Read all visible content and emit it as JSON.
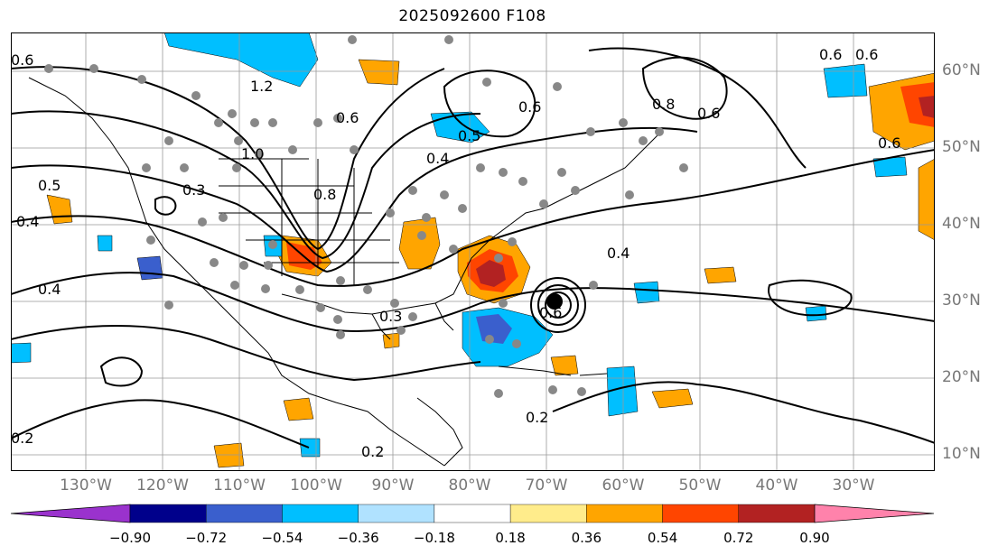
{
  "title": "2025092600 F108",
  "lat_labels": [
    "60°N",
    "50°N",
    "40°N",
    "30°N",
    "20°N",
    "10°N"
  ],
  "lon_labels": [
    "130°W",
    "120°W",
    "110°W",
    "100°W",
    "90°W",
    "80°W",
    "70°W",
    "60°W",
    "50°W",
    "40°W",
    "30°W"
  ],
  "contour_labels": [
    "0.6",
    "0.5",
    "0.4",
    "0.4",
    "1.2",
    "1.0",
    "0.8",
    "0.6",
    "0.6",
    "0.6",
    "0.4",
    "0.3",
    "0.4",
    "0.2",
    "0.2",
    "0.2",
    "0.6",
    "0.6",
    "0.6",
    "0.8",
    "0.6",
    "0.5",
    "0.3"
  ],
  "colorbar": {
    "ticks": [
      "−0.90",
      "−0.72",
      "−0.54",
      "−0.36",
      "−0.18",
      "0.18",
      "0.36",
      "0.54",
      "0.72",
      "0.90"
    ],
    "colors": [
      "#9a32cd",
      "#00008b",
      "#3a5fcd",
      "#00bfff",
      "#b0e2ff",
      "#ffffff",
      "#ffec8b",
      "#ffa500",
      "#ff4500",
      "#b22222",
      "#ff82ab"
    ]
  },
  "colors": {
    "neg_strong": "#3a5fcd",
    "neg_mid": "#00bfff",
    "pos_mid": "#ffa500",
    "pos_strong": "#ff4500",
    "pos_stronger": "#b22222",
    "dot": "#888888",
    "land": "#000000"
  }
}
